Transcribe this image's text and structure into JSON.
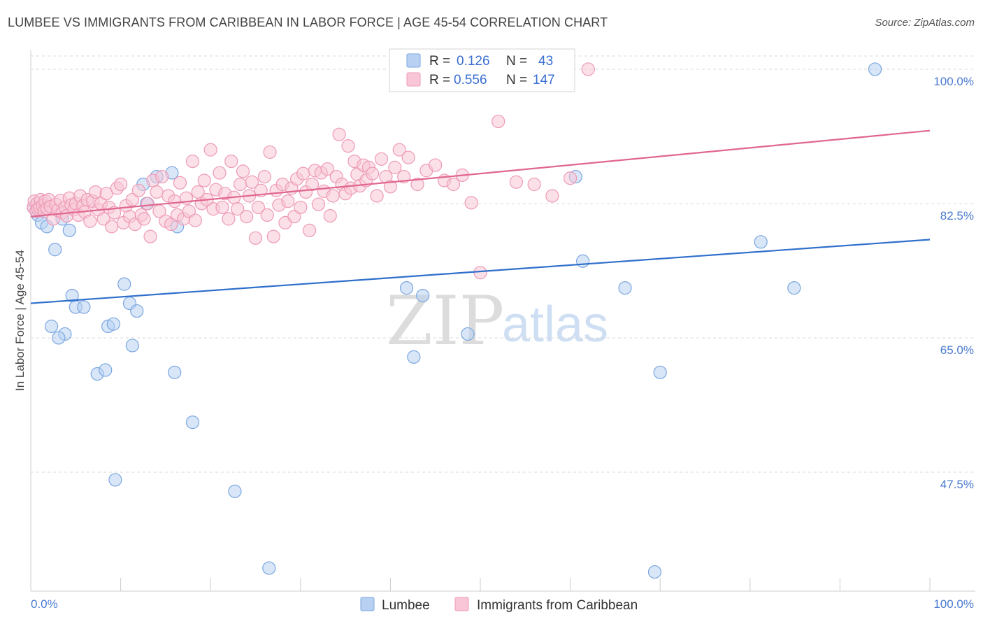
{
  "header": {
    "title": "LUMBEE VS IMMIGRANTS FROM CARIBBEAN IN LABOR FORCE | AGE 45-54 CORRELATION CHART",
    "source": "Source: ZipAtlas.com"
  },
  "watermark": {
    "part1": "ZIP",
    "part2": "atlas"
  },
  "colors": {
    "lumbee_fill": "#b8d1f3",
    "lumbee_stroke": "#7aa6e0",
    "lumbee_line": "#2f6fcc",
    "carib_fill": "#f8c6d6",
    "carib_stroke": "#ee9ab6",
    "carib_line": "#e0668f",
    "grid": "#d8d8d8",
    "tick_text": "#4a7bd0"
  },
  "legend": {
    "rows": [
      {
        "r_label": "R =",
        "r_value": "0.126",
        "n_label": "N =",
        "n_value": "43"
      },
      {
        "r_label": "R =",
        "r_value": "0.556",
        "n_label": "N =",
        "n_value": "147"
      }
    ]
  },
  "chart_data": {
    "type": "scatter",
    "title": "LUMBEE VS IMMIGRANTS FROM CARIBBEAN IN LABOR FORCE | AGE 45-54 CORRELATION CHART",
    "xlabel": "",
    "ylabel": "In Labor Force | Age 45-54",
    "xlim": [
      0,
      100
    ],
    "ylim": [
      32,
      102
    ],
    "x_tick_labels": [
      "0.0%",
      "100.0%"
    ],
    "y_ticks": [
      {
        "value": 100.0,
        "label": "100.0%"
      },
      {
        "value": 82.5,
        "label": "82.5%"
      },
      {
        "value": 65.0,
        "label": "65.0%"
      },
      {
        "value": 47.5,
        "label": "47.5%"
      }
    ],
    "grid": "horizontal dashed",
    "legend_placement": "top-center",
    "series": [
      {
        "name": "Lumbee",
        "r": 0.126,
        "n": 43,
        "trend": {
          "x": [
            0,
            100
          ],
          "y": [
            69.5,
            77.8
          ]
        },
        "x": [
          0.3,
          0.8,
          1.2,
          1.8,
          3.5,
          2.7,
          4.3,
          4.6,
          5.0,
          3.8,
          2.3,
          3.1,
          5.9,
          7.4,
          8.3,
          8.6,
          9.2,
          11.3,
          10.4,
          11.0,
          11.8,
          12.9,
          12.5,
          14.0,
          15.7,
          16.3,
          16.0,
          18.0,
          9.4,
          22.7,
          26.5,
          42.6,
          41.8,
          43.6,
          48.6,
          60.6,
          61.4,
          66.1,
          70.0,
          69.4,
          84.9,
          81.2,
          93.9
        ],
        "y": [
          82.0,
          81.0,
          80.0,
          79.5,
          80.5,
          76.5,
          79.0,
          70.5,
          69.0,
          65.5,
          66.5,
          65.0,
          69.0,
          60.3,
          60.8,
          66.5,
          66.8,
          64.0,
          72.0,
          69.5,
          68.5,
          82.5,
          85.0,
          86.0,
          86.5,
          79.5,
          60.5,
          54.0,
          46.5,
          45.0,
          35.0,
          62.5,
          71.5,
          70.5,
          65.5,
          86.0,
          75.0,
          71.5,
          60.5,
          34.5,
          71.5,
          77.5,
          100.0
        ]
      },
      {
        "name": "Immigrants from Caribbean",
        "r": 0.556,
        "n": 147,
        "trend": {
          "x": [
            0,
            100
          ],
          "y": [
            80.8,
            92.0
          ]
        },
        "x": [
          0.3,
          0.4,
          0.6,
          0.7,
          0.8,
          1.0,
          1.1,
          1.3,
          1.5,
          1.6,
          1.8,
          2.0,
          2.2,
          2.5,
          2.8,
          3.0,
          3.3,
          3.5,
          3.8,
          4.0,
          4.3,
          4.5,
          4.8,
          5.0,
          5.3,
          5.5,
          5.8,
          6.0,
          6.3,
          6.6,
          6.9,
          7.2,
          7.5,
          7.8,
          8.1,
          8.4,
          8.7,
          9.0,
          9.3,
          9.6,
          10.0,
          10.3,
          10.6,
          11.0,
          11.3,
          11.6,
          12.0,
          12.3,
          12.6,
          13.0,
          13.3,
          13.6,
          14.0,
          14.3,
          14.6,
          15.0,
          15.3,
          15.6,
          16.0,
          16.3,
          16.6,
          17.0,
          17.3,
          17.6,
          18.0,
          18.3,
          18.6,
          19.0,
          19.3,
          19.6,
          20.0,
          20.3,
          20.6,
          21.0,
          21.3,
          21.6,
          22.0,
          22.3,
          22.6,
          23.0,
          23.3,
          23.6,
          24.0,
          24.3,
          24.6,
          25.0,
          25.3,
          25.6,
          26.0,
          26.3,
          26.6,
          27.0,
          27.3,
          27.6,
          28.0,
          28.3,
          28.6,
          29.0,
          29.3,
          29.6,
          30.0,
          30.3,
          30.6,
          31.0,
          31.3,
          31.6,
          32.0,
          32.3,
          32.6,
          33.0,
          33.3,
          33.6,
          34.0,
          34.3,
          34.6,
          35.0,
          35.3,
          35.6,
          36.0,
          36.3,
          36.6,
          37.0,
          37.3,
          37.6,
          38.0,
          38.5,
          39.0,
          39.5,
          40.0,
          40.5,
          41.0,
          41.5,
          42.0,
          43.0,
          44.0,
          45.0,
          46.0,
          47.0,
          48.0,
          49.0,
          50.0,
          52.0,
          54.0,
          56.0,
          58.0,
          60.0,
          62.0
        ],
        "y": [
          82.0,
          82.8,
          81.5,
          82.5,
          81.8,
          82.0,
          83.0,
          82.2,
          81.5,
          82.8,
          81.9,
          83.0,
          82.1,
          80.5,
          82.4,
          81.6,
          82.9,
          81.3,
          82.0,
          80.9,
          83.2,
          82.3,
          81.7,
          82.5,
          81.0,
          83.5,
          82.2,
          81.4,
          83.0,
          80.2,
          82.8,
          84.0,
          81.7,
          82.5,
          80.5,
          83.8,
          82.0,
          79.5,
          81.3,
          84.5,
          85.0,
          80.0,
          82.2,
          80.8,
          83.0,
          79.8,
          84.2,
          81.0,
          80.5,
          82.5,
          78.2,
          85.5,
          84.0,
          81.5,
          86.0,
          80.2,
          83.5,
          79.8,
          82.8,
          81.0,
          85.2,
          80.5,
          83.2,
          81.5,
          88.0,
          80.3,
          84.0,
          82.5,
          85.5,
          83.0,
          89.5,
          81.8,
          84.3,
          86.5,
          82.0,
          83.8,
          80.5,
          88.0,
          83.3,
          81.8,
          85.0,
          86.7,
          80.8,
          83.5,
          85.3,
          78.0,
          82.0,
          84.2,
          86.0,
          81.0,
          89.2,
          78.2,
          84.2,
          82.3,
          85.0,
          80.0,
          82.8,
          84.5,
          80.8,
          85.7,
          82.0,
          86.4,
          84.0,
          79.0,
          85.0,
          86.8,
          82.4,
          86.5,
          84.1,
          87.0,
          80.9,
          83.5,
          86.0,
          91.5,
          85.0,
          83.8,
          90.0,
          84.5,
          88.0,
          86.3,
          84.8,
          87.5,
          85.5,
          87.2,
          86.4,
          83.5,
          88.3,
          86.0,
          84.7,
          87.2,
          89.5,
          86.0,
          88.5,
          85.0,
          86.8,
          87.5,
          85.5,
          85.0,
          86.2,
          82.6,
          73.5,
          93.2,
          85.3,
          85.0,
          83.5,
          85.8,
          100.0
        ]
      }
    ]
  }
}
